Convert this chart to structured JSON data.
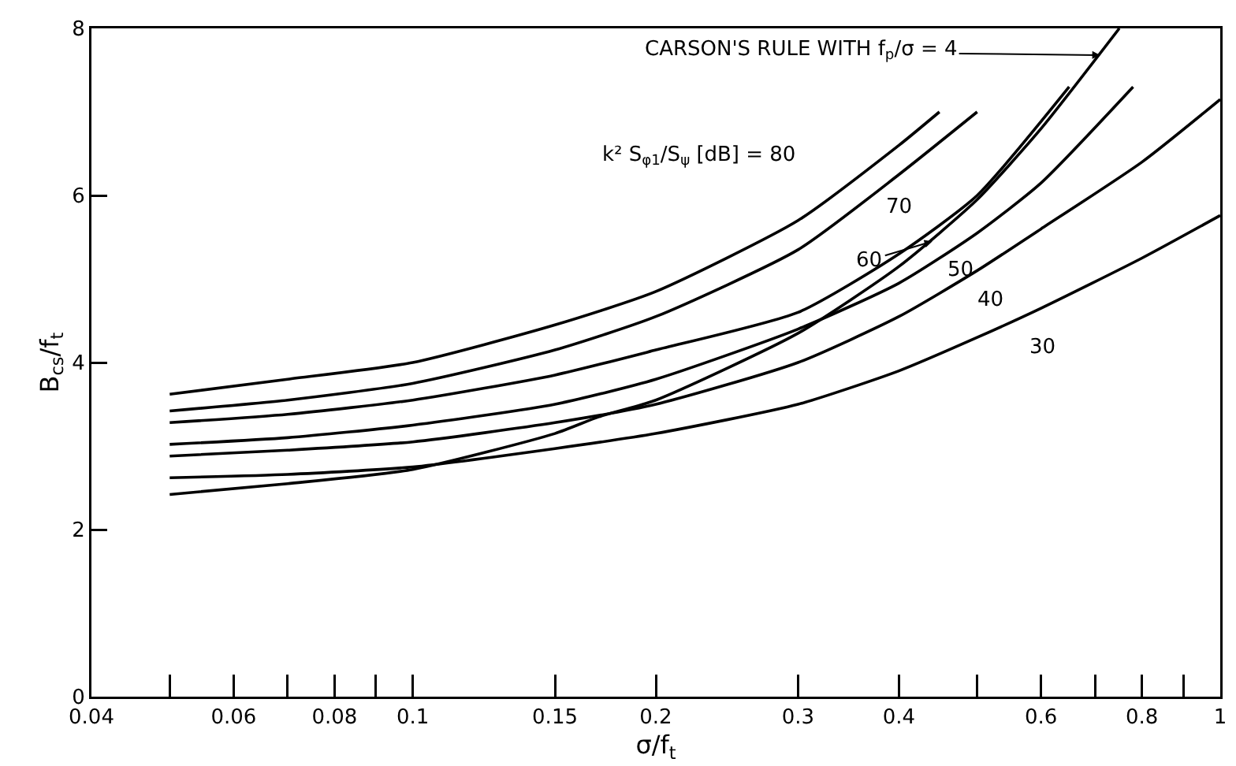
{
  "chart_data": {
    "type": "line",
    "xlabel": "σ/f$_{t}$",
    "ylabel": "B$_{cs}$/f$_{t}$",
    "log": "x",
    "grid": false,
    "marker": "none",
    "line_style": "solid",
    "xlim": [
      0.04,
      1
    ],
    "ylim": [
      0,
      8
    ],
    "xticks": [
      0.04,
      {
        "value": 0.05,
        "label": null
      },
      0.06,
      {
        "value": 0.07,
        "label": null
      },
      0.08,
      {
        "value": 0.09,
        "label": null
      },
      0.1,
      0.15,
      0.2,
      0.3,
      0.4,
      {
        "value": 0.5,
        "label": null
      },
      0.6,
      {
        "value": 0.7,
        "label": null
      },
      0.8,
      {
        "value": 0.9,
        "label": null
      },
      1
    ],
    "yticks": [
      0,
      2,
      4,
      6,
      8
    ],
    "series": [
      {
        "color": "#000000",
        "x": [
          0.05,
          0.07,
          0.1,
          0.15,
          0.2,
          0.3,
          0.4,
          0.449
        ],
        "values": [
          3.62,
          3.8,
          4.0,
          4.45,
          4.85,
          5.7,
          6.6,
          7.0
        ]
      },
      {
        "color": "#000000",
        "x": [
          0.05,
          0.07,
          0.1,
          0.15,
          0.2,
          0.3,
          0.4,
          0.5
        ],
        "values": [
          3.42,
          3.55,
          3.75,
          4.15,
          4.55,
          5.35,
          6.25,
          7.0
        ]
      },
      {
        "color": "#000000",
        "x": [
          0.05,
          0.07,
          0.1,
          0.15,
          0.2,
          0.3,
          0.4,
          0.5,
          0.65
        ],
        "values": [
          3.28,
          3.38,
          3.55,
          3.85,
          4.15,
          4.6,
          5.3,
          6.0,
          7.3
        ]
      },
      {
        "color": "#000000",
        "x": [
          0.05,
          0.07,
          0.1,
          0.15,
          0.2,
          0.3,
          0.4,
          0.5,
          0.6,
          0.78
        ],
        "values": [
          3.02,
          3.1,
          3.25,
          3.5,
          3.8,
          4.4,
          4.95,
          5.55,
          6.15,
          7.3
        ]
      },
      {
        "color": "#000000",
        "x": [
          0.05,
          0.07,
          0.1,
          0.15,
          0.2,
          0.3,
          0.4,
          0.5,
          0.6,
          0.8,
          1
        ],
        "values": [
          2.88,
          2.95,
          3.05,
          3.28,
          3.5,
          4.0,
          4.55,
          5.1,
          5.6,
          6.4,
          7.15
        ]
      },
      {
        "color": "#000000",
        "x": [
          0.05,
          0.07,
          0.1,
          0.15,
          0.2,
          0.3,
          0.4,
          0.5,
          0.6,
          0.8,
          1
        ],
        "values": [
          2.62,
          2.66,
          2.75,
          2.97,
          3.15,
          3.5,
          3.9,
          4.3,
          4.65,
          5.25,
          5.76
        ]
      },
      {
        "color": "#000000",
        "x": [
          0.05,
          0.07,
          0.1,
          0.15,
          0.17,
          0.2,
          0.3,
          0.4,
          0.5,
          0.6,
          0.75
        ],
        "values": [
          2.42,
          2.55,
          2.72,
          3.15,
          3.35,
          3.55,
          4.35,
          5.15,
          5.95,
          6.8,
          8.0
        ]
      }
    ],
    "annotations": [
      {
        "text": "CARSON'S RULE WITH f$_{p}$/σ = 4",
        "x": 0.71,
        "y": 7.68
      },
      {
        "text": "k² S$_{φ1}$/S$_{ψ}$ [dB] = 80",
        "x": 0.3,
        "y": 5.7
      },
      {
        "text": "70",
        "x": 0.4,
        "y": 6.25
      },
      {
        "text": "60",
        "x": 0.44,
        "y": 5.45
      },
      {
        "text": "50",
        "x": 0.465,
        "y": 5.34
      },
      {
        "text": "40",
        "x": 0.51,
        "y": 5.15
      },
      {
        "text": "30",
        "x": 0.587,
        "y": 4.6
      }
    ]
  }
}
